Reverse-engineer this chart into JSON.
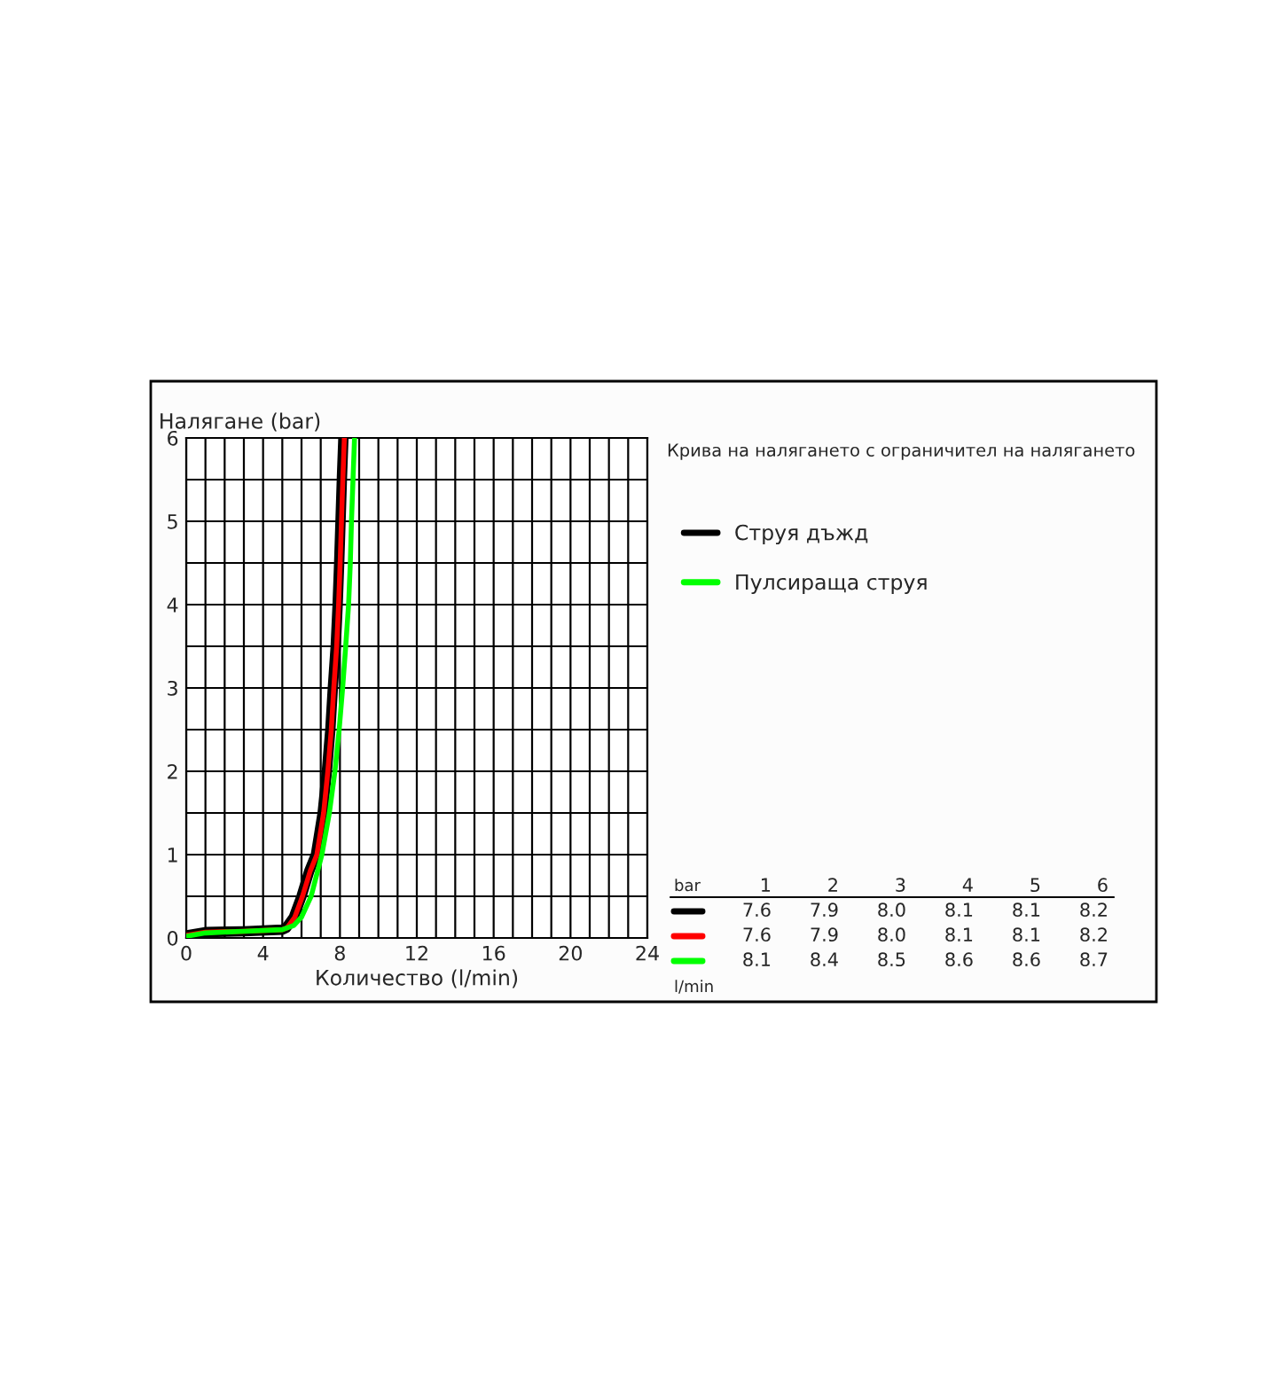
{
  "chart_data": {
    "type": "line",
    "title": "Крива на налягането с ограничител на налягането",
    "xlabel": "Количество (l/min)",
    "ylabel": "Налягане (bar)",
    "series": [
      {
        "name": "Струя дъжд",
        "color": "#000000",
        "x": [
          0,
          1,
          3,
          5,
          5.2,
          5.6,
          6.0,
          6.4,
          6.75,
          7.1,
          7.32,
          7.5,
          7.63,
          7.78,
          7.88,
          7.96,
          8.03,
          8.1,
          8.18
        ],
        "values": [
          0.03,
          0.07,
          0.08,
          0.1,
          0.12,
          0.25,
          0.5,
          0.8,
          1.0,
          1.5,
          2.0,
          2.5,
          3.0,
          3.5,
          4.0,
          4.5,
          5.0,
          5.5,
          6.0
        ]
      },
      {
        "color": "#ff0000",
        "x": [
          0,
          1,
          3,
          5,
          5.25,
          5.65,
          6.05,
          6.45,
          6.8,
          7.15,
          7.37,
          7.55,
          7.68,
          7.83,
          7.93,
          8.01,
          8.08,
          8.15,
          8.23
        ],
        "values": [
          0.03,
          0.07,
          0.08,
          0.1,
          0.12,
          0.25,
          0.5,
          0.8,
          1.0,
          1.5,
          2.0,
          2.5,
          3.0,
          3.5,
          4.0,
          4.5,
          5.0,
          5.5,
          6.0
        ]
      },
      {
        "name": "Пулсираща струя",
        "color": "#00ff00",
        "x": [
          0,
          1,
          3,
          5,
          5.6,
          6.0,
          6.5,
          7.06,
          7.45,
          7.74,
          7.96,
          8.14,
          8.3,
          8.45,
          8.54,
          8.6,
          8.68,
          8.76
        ],
        "values": [
          0.02,
          0.06,
          0.08,
          0.1,
          0.15,
          0.25,
          0.5,
          1.0,
          1.5,
          2.0,
          2.5,
          3.0,
          3.5,
          4.0,
          4.5,
          5.0,
          5.5,
          6.0
        ]
      }
    ],
    "xlim": [
      0,
      24
    ],
    "ylim": [
      0,
      6
    ],
    "xticks": [
      0,
      {
        "value": 1,
        "label": null
      },
      {
        "value": 2,
        "label": null
      },
      {
        "value": 3,
        "label": null
      },
      4,
      {
        "value": 5,
        "label": null
      },
      {
        "value": 6,
        "label": null
      },
      {
        "value": 7,
        "label": null
      },
      8,
      {
        "value": 9,
        "label": null
      },
      {
        "value": 10,
        "label": null
      },
      {
        "value": 11,
        "label": null
      },
      12,
      {
        "value": 13,
        "label": null
      },
      {
        "value": 14,
        "label": null
      },
      {
        "value": 15,
        "label": null
      },
      16,
      {
        "value": 17,
        "label": null
      },
      {
        "value": 18,
        "label": null
      },
      {
        "value": 19,
        "label": null
      },
      20,
      {
        "value": 21,
        "label": null
      },
      {
        "value": 22,
        "label": null
      },
      {
        "value": 23,
        "label": null
      },
      24
    ],
    "yticks": [
      0,
      {
        "value": 0.5,
        "label": null
      },
      1,
      {
        "value": 1.5,
        "label": null
      },
      2,
      {
        "value": 2.5,
        "label": null
      },
      3,
      {
        "value": 3.5,
        "label": null
      },
      4,
      {
        "value": 4.5,
        "label": null
      },
      5,
      {
        "value": 5.5,
        "label": null
      },
      6
    ],
    "grid": true,
    "legend": "right",
    "marker": "none",
    "line_style": "solid",
    "annotations": [
      "bar",
      "1",
      "2",
      "3",
      "4",
      "5",
      "6",
      "7.6",
      "7.9",
      "8.0",
      "8.1",
      "8.1",
      "8.2",
      "7.6",
      "7.9",
      "8.0",
      "8.1",
      "8.1",
      "8.2",
      "8.1",
      "8.4",
      "8.5",
      "8.6",
      "8.6",
      "8.7",
      "l/min"
    ]
  }
}
